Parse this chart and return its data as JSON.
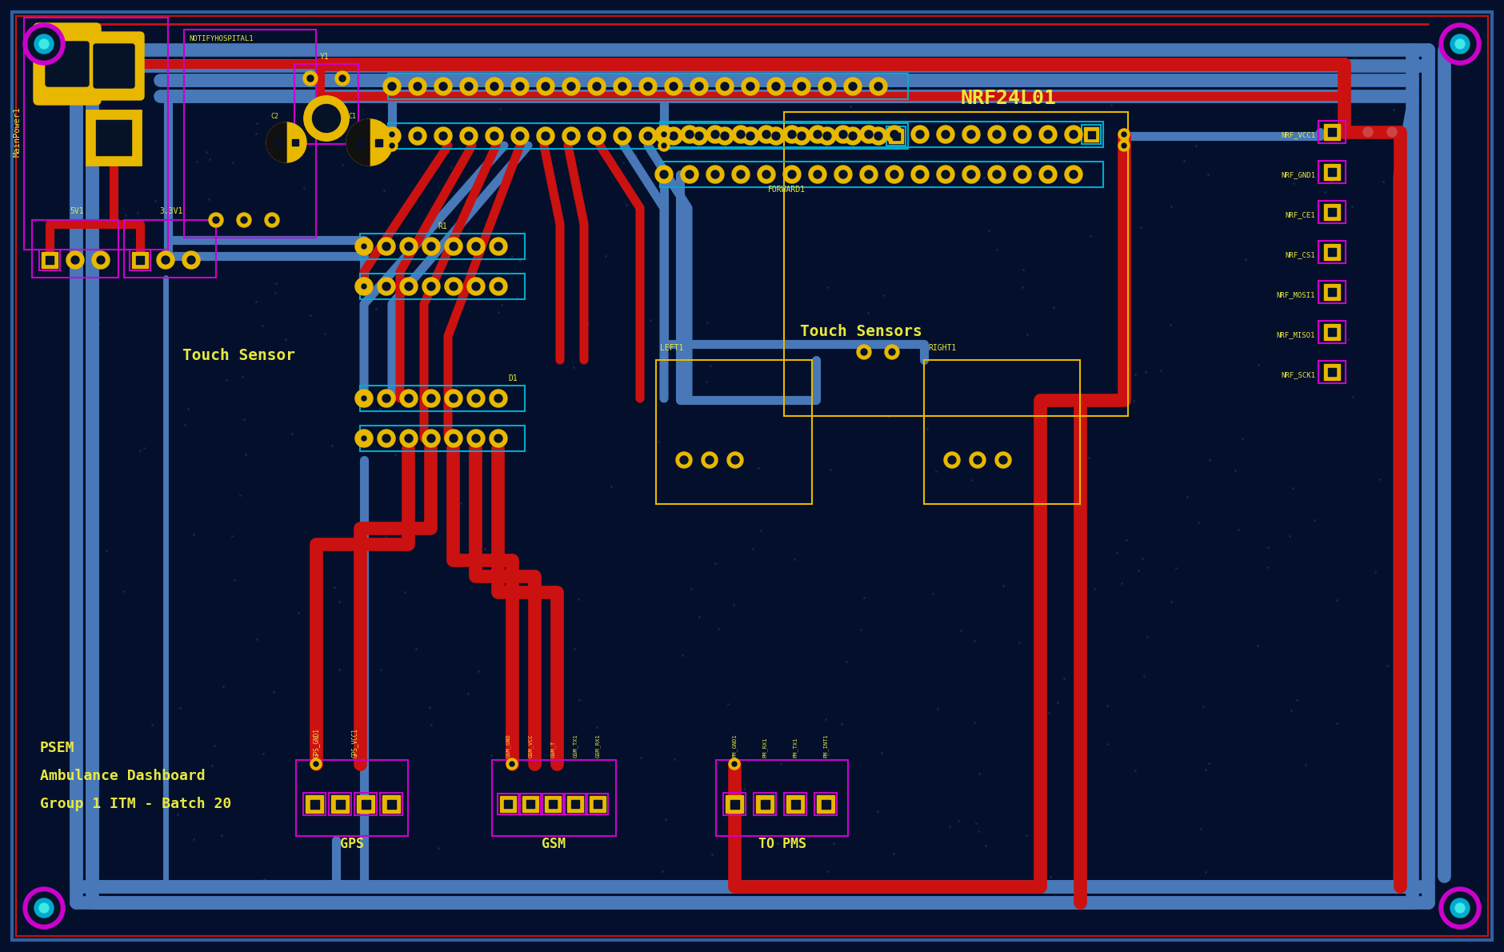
{
  "bg_color": "#04102b",
  "board_color": "#061228",
  "blue": "#4878b8",
  "red": "#cc1111",
  "yellow": "#e8b800",
  "magenta": "#cc00cc",
  "cyan": "#00aacc",
  "ytext": "#e8e840",
  "wtext": "#ffffff",
  "bottom_text": [
    "PSEM",
    "Ambulance Dashboard",
    "Group 1 ITM - Batch 20"
  ],
  "dot_seed": 42
}
